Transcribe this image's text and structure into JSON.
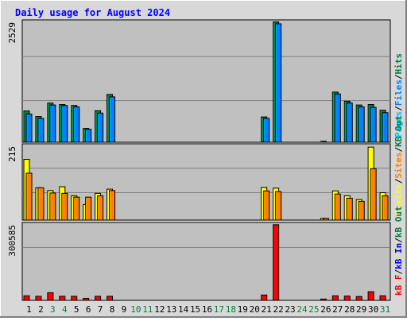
{
  "title": "Daily usage for August 2024",
  "colors": {
    "background": "#D8D8D8",
    "plot_bg": "#C0C0C0",
    "title": "#0000FF",
    "hits": "#008040",
    "files": "#0080FF",
    "pages": "#00C0FF",
    "visits": "#FFFF00",
    "sites": "#FF8000",
    "kb_in": "#0000FF",
    "kb_out": "#008040",
    "kb_f": "#FF0000",
    "weekend": "#008040",
    "weekday": "#000000"
  },
  "chart_data": [
    {
      "type": "bar",
      "panel": "hits-files-pages",
      "categories": [
        "1",
        "2",
        "3",
        "4",
        "5",
        "6",
        "7",
        "8",
        "9",
        "10",
        "11",
        "12",
        "13",
        "14",
        "15",
        "16",
        "17",
        "18",
        "19",
        "20",
        "21",
        "22",
        "23",
        "24",
        "25",
        "26",
        "27",
        "28",
        "29",
        "30",
        "31"
      ],
      "ylim": [
        0,
        2529
      ],
      "ytick_label": "2529",
      "side_label": [
        {
          "text": "Pages",
          "color_key": "pages"
        },
        {
          "text": "/",
          "color_key": "weekday"
        },
        {
          "text": "Files",
          "color_key": "files"
        },
        {
          "text": "/",
          "color_key": "weekday"
        },
        {
          "text": "Hits",
          "color_key": "hits"
        }
      ],
      "series": [
        {
          "name": "Hits",
          "color_key": "hits",
          "values": [
            655,
            540,
            820,
            790,
            770,
            290,
            660,
            1000,
            0,
            0,
            0,
            0,
            0,
            0,
            0,
            0,
            0,
            0,
            0,
            0,
            530,
            2520,
            0,
            0,
            0,
            20,
            1050,
            860,
            780,
            790,
            670
          ]
        },
        {
          "name": "Files",
          "color_key": "files",
          "values": [
            590,
            500,
            780,
            770,
            740,
            270,
            610,
            950,
            0,
            0,
            0,
            0,
            0,
            0,
            0,
            0,
            0,
            0,
            0,
            0,
            500,
            2480,
            0,
            0,
            0,
            0,
            1010,
            820,
            740,
            730,
            620
          ]
        },
        {
          "name": "Pages",
          "color_key": "pages",
          "values": [
            0,
            0,
            0,
            0,
            0,
            0,
            0,
            0,
            0,
            0,
            0,
            0,
            0,
            0,
            0,
            0,
            0,
            0,
            0,
            0,
            0,
            0,
            0,
            0,
            0,
            0,
            0,
            0,
            0,
            0,
            0
          ]
        }
      ]
    },
    {
      "type": "bar",
      "panel": "visits-sites",
      "categories": [
        "1",
        "2",
        "3",
        "4",
        "5",
        "6",
        "7",
        "8",
        "9",
        "10",
        "11",
        "12",
        "13",
        "14",
        "15",
        "16",
        "17",
        "18",
        "19",
        "20",
        "21",
        "22",
        "23",
        "24",
        "25",
        "26",
        "27",
        "28",
        "29",
        "30",
        "31"
      ],
      "ylim": [
        0,
        215
      ],
      "ytick_label": "215",
      "side_label": [
        {
          "text": "Visits",
          "color_key": "visits"
        },
        {
          "text": "/",
          "color_key": "weekday"
        },
        {
          "text": "Sites",
          "color_key": "sites"
        },
        {
          "text": "/",
          "color_key": "weekday"
        },
        {
          "text": "KB Out",
          "color_key": "kb_out"
        }
      ],
      "series": [
        {
          "name": "Visits",
          "color_key": "visits",
          "values": [
            175,
            93,
            85,
            96,
            70,
            45,
            77,
            89,
            0,
            0,
            0,
            0,
            0,
            0,
            0,
            0,
            0,
            0,
            0,
            0,
            94,
            92,
            0,
            0,
            0,
            5,
            84,
            70,
            59,
            210,
            79
          ]
        },
        {
          "name": "Sites",
          "color_key": "sites",
          "values": [
            135,
            93,
            78,
            77,
            66,
            66,
            70,
            85,
            0,
            0,
            0,
            0,
            0,
            0,
            0,
            0,
            0,
            0,
            0,
            0,
            84,
            82,
            0,
            0,
            0,
            5,
            75,
            63,
            54,
            148,
            70
          ]
        }
      ]
    },
    {
      "type": "bar",
      "panel": "kbytes",
      "categories": [
        "1",
        "2",
        "3",
        "4",
        "5",
        "6",
        "7",
        "8",
        "9",
        "10",
        "11",
        "12",
        "13",
        "14",
        "15",
        "16",
        "17",
        "18",
        "19",
        "20",
        "21",
        "22",
        "23",
        "24",
        "25",
        "26",
        "27",
        "28",
        "29",
        "30",
        "31"
      ],
      "ylim": [
        0,
        300585
      ],
      "ytick_label": "300585",
      "side_label": [
        {
          "text": "kB F",
          "color_key": "kb_f"
        },
        {
          "text": "/",
          "color_key": "weekday"
        },
        {
          "text": "kB In",
          "color_key": "kb_in"
        },
        {
          "text": "/",
          "color_key": "weekday"
        },
        {
          "text": "kB Out",
          "color_key": "kb_out"
        }
      ],
      "series": [
        {
          "name": "kB F",
          "color_key": "kb_f",
          "values": [
            18000,
            16000,
            30000,
            16000,
            16000,
            8000,
            16000,
            16000,
            0,
            0,
            0,
            0,
            0,
            0,
            0,
            0,
            0,
            0,
            0,
            0,
            21000,
            298000,
            0,
            0,
            0,
            5000,
            18000,
            17000,
            15000,
            34000,
            18000
          ]
        }
      ]
    }
  ],
  "weekend_days": [
    "3",
    "4",
    "10",
    "11",
    "17",
    "18",
    "24",
    "25",
    "31"
  ]
}
